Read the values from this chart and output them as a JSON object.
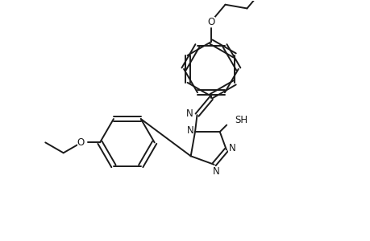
{
  "bg_color": "#ffffff",
  "line_color": "#1a1a1a",
  "line_width": 1.4,
  "font_size": 8.5,
  "figsize": [
    4.6,
    3.0
  ],
  "dpi": 100,
  "xlim": [
    0,
    9.2
  ],
  "ylim": [
    0,
    6.0
  ]
}
